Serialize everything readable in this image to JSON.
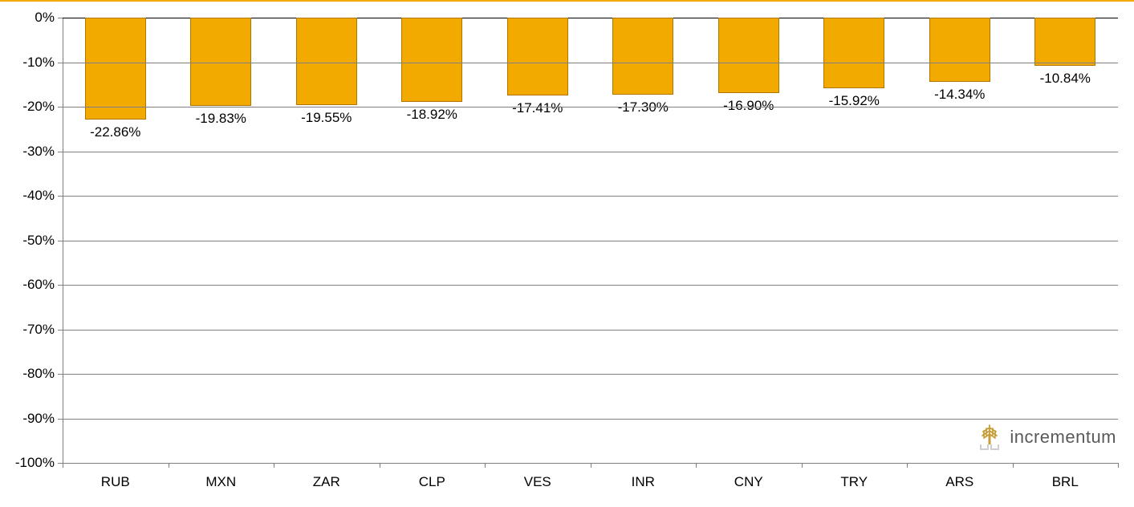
{
  "chart": {
    "type": "bar",
    "orientation": "vertical-negative",
    "categories": [
      "RUB",
      "MXN",
      "ZAR",
      "CLP",
      "VES",
      "INR",
      "CNY",
      "TRY",
      "ARS",
      "BRL"
    ],
    "values": [
      -22.86,
      -19.83,
      -19.55,
      -18.92,
      -17.41,
      -17.3,
      -16.9,
      -15.92,
      -14.34,
      -10.84
    ],
    "value_labels": [
      "-22.86%",
      "-19.83%",
      "-19.55%",
      "-18.92%",
      "-17.41%",
      "-17.30%",
      "-16.90%",
      "-15.92%",
      "-14.34%",
      "-10.84%"
    ],
    "bar_color": "#f2a900",
    "bar_border_color": "#b37400",
    "bar_width_ratio": 0.58,
    "ylim": [
      -100,
      0
    ],
    "ytick_step": 10,
    "y_ticks": [
      0,
      -10,
      -20,
      -30,
      -40,
      -50,
      -60,
      -70,
      -80,
      -90,
      -100
    ],
    "y_tick_labels": [
      "0%",
      "-10%",
      "-20%",
      "-30%",
      "-40%",
      "-50%",
      "-60%",
      "-70%",
      "-80%",
      "-90%",
      "-100%"
    ],
    "background_color": "#ffffff",
    "grid_line_color": "#808080",
    "baseline_color": "#000000",
    "label_fontsize": 17,
    "tick_fontsize": 17,
    "top_accent_color": "#f2a900"
  },
  "logo": {
    "text": "incrementum",
    "text_color": "#58595b",
    "mark_color": "#c99d36",
    "mark_base_color": "#e6e6e6"
  }
}
